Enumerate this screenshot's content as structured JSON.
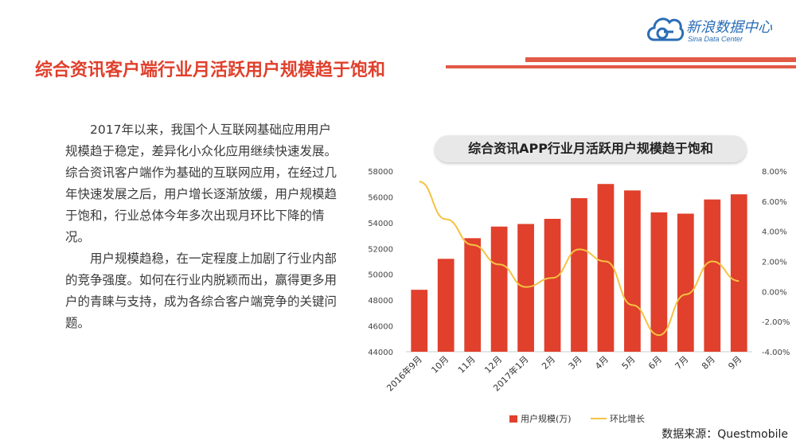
{
  "logo": {
    "name_cn": "新浪数据中心",
    "name_en": "Sina Data Center",
    "color": "#2a6db5"
  },
  "header": {
    "title": "综合资讯客户端行业月活跃用户规模趋于饱和",
    "accent_color": "#e0402c"
  },
  "body": {
    "paragraphs": [
      "2017年以来，我国个人互联网基础应用用户规模趋于稳定，差异化小众化应用继续快速发展。综合资讯客户端作为基础的互联网应用，在经过几年快速发展之后，用户增长逐渐放缓，用户规模趋于饱和，行业总体今年多次出现月环比下降的情况。",
      "用户规模趋稳，在一定程度上加剧了行业内部的竞争强度。如何在行业内脱颖而出，赢得更多用户的青睐与支持，成为各综合客户端竞争的关键问题。"
    ]
  },
  "source": "数据来源：Questmobile",
  "chart_data": {
    "type": "bar",
    "title": "综合资讯APP行业月活跃用户规模趋于饱和",
    "categories": [
      "2016年9月",
      "10月",
      "11月",
      "12月",
      "2017年1月",
      "2月",
      "3月",
      "4月",
      "5月",
      "6月",
      "7月",
      "8月",
      "9月"
    ],
    "series": [
      {
        "name": "用户规模(万)",
        "type": "bar",
        "axis": "left",
        "color": "#e0402c",
        "values": [
          48800,
          51200,
          52800,
          53700,
          53900,
          54300,
          55900,
          57000,
          56500,
          54800,
          54700,
          55800,
          56200
        ]
      },
      {
        "name": "环比增长",
        "type": "line",
        "axis": "right",
        "color": "#f5c242",
        "values": [
          7.3,
          4.8,
          3.1,
          1.8,
          0.3,
          0.9,
          2.8,
          2.0,
          -0.9,
          -2.9,
          -0.2,
          2.0,
          0.7
        ]
      }
    ],
    "y_left": {
      "min": 44000,
      "max": 58000,
      "ticks": [
        "44000",
        "46000",
        "48000",
        "50000",
        "52000",
        "54000",
        "56000",
        "58000"
      ]
    },
    "y_right": {
      "min": -4,
      "max": 8,
      "ticks": [
        "-4.00%",
        "-2.00%",
        "0.00%",
        "2.00%",
        "4.00%",
        "6.00%",
        "8.00%"
      ]
    },
    "legend_position": "bottom",
    "grid": false
  }
}
